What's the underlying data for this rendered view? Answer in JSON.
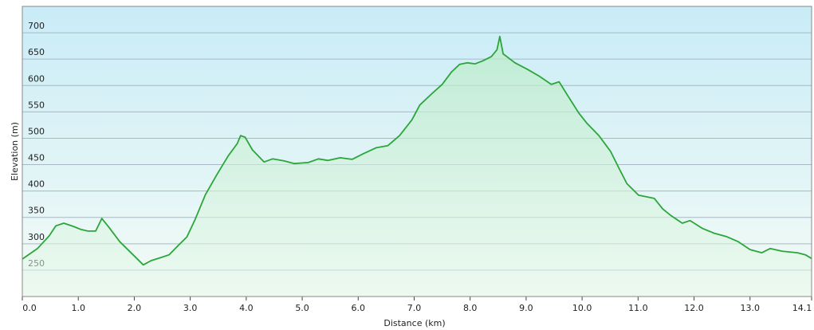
{
  "chart_data": {
    "type": "area",
    "x_label": "Distance (km)",
    "y_label": "Elevation (m)",
    "x": [
      0.0,
      0.27,
      0.48,
      0.6,
      0.74,
      0.91,
      1.05,
      1.17,
      1.31,
      1.42,
      1.55,
      1.74,
      1.98,
      2.16,
      2.3,
      2.48,
      2.62,
      2.76,
      2.94,
      3.09,
      3.27,
      3.47,
      3.68,
      3.84,
      3.9,
      3.98,
      4.11,
      4.32,
      4.47,
      4.68,
      4.86,
      5.11,
      5.29,
      5.46,
      5.68,
      5.89,
      6.1,
      6.32,
      6.53,
      6.74,
      6.96,
      7.1,
      7.31,
      7.5,
      7.67,
      7.81,
      7.95,
      8.09,
      8.23,
      8.38,
      8.48,
      8.53,
      8.59,
      8.8,
      9.02,
      9.23,
      9.45,
      9.59,
      9.76,
      9.94,
      10.09,
      10.3,
      10.51,
      10.65,
      10.8,
      11.01,
      11.29,
      11.44,
      11.58,
      11.79,
      11.93,
      12.15,
      12.36,
      12.57,
      12.79,
      13.0,
      13.21,
      13.36,
      13.57,
      13.85,
      13.99,
      14.1
    ],
    "series": [
      {
        "color": "#2aa63a",
        "values": [
          271,
          291,
          315,
          334,
          339,
          333,
          327,
          324,
          324,
          348,
          331,
          304,
          279,
          260,
          268,
          274,
          279,
          294,
          313,
          347,
          393,
          430,
          467,
          490,
          505,
          502,
          478,
          455,
          461,
          457,
          452,
          454,
          461,
          458,
          463,
          460,
          471,
          482,
          486,
          505,
          535,
          563,
          584,
          602,
          626,
          640,
          643,
          641,
          647,
          655,
          668,
          693,
          660,
          643,
          631,
          618,
          602,
          607,
          578,
          548,
          528,
          505,
          475,
          445,
          414,
          392,
          386,
          366,
          354,
          339,
          344,
          329,
          320,
          314,
          304,
          289,
          283,
          291,
          286,
          283,
          279,
          272
        ]
      }
    ],
    "xlim": [
      0,
      14.1
    ],
    "xticks": [
      {
        "value": 0,
        "label": "0.0"
      },
      {
        "value": 1,
        "label": "1.0"
      },
      {
        "value": 2,
        "label": "2.0"
      },
      {
        "value": 3,
        "label": "3.0"
      },
      {
        "value": 4,
        "label": "4.0"
      },
      {
        "value": 5,
        "label": "5.0"
      },
      {
        "value": 6,
        "label": "6.0"
      },
      {
        "value": 7,
        "label": "7.0"
      },
      {
        "value": 8,
        "label": "8.0"
      },
      {
        "value": 9,
        "label": "9.0"
      },
      {
        "value": 10,
        "label": "10.0"
      },
      {
        "value": 11,
        "label": "11.0"
      },
      {
        "value": 12,
        "label": "12.0"
      },
      {
        "value": 13,
        "label": "13.0"
      },
      14.1
    ],
    "ylim": [
      200,
      750
    ],
    "yticks": [
      250,
      300,
      350,
      400,
      450,
      500,
      550,
      600,
      650,
      700
    ],
    "grid": true
  }
}
